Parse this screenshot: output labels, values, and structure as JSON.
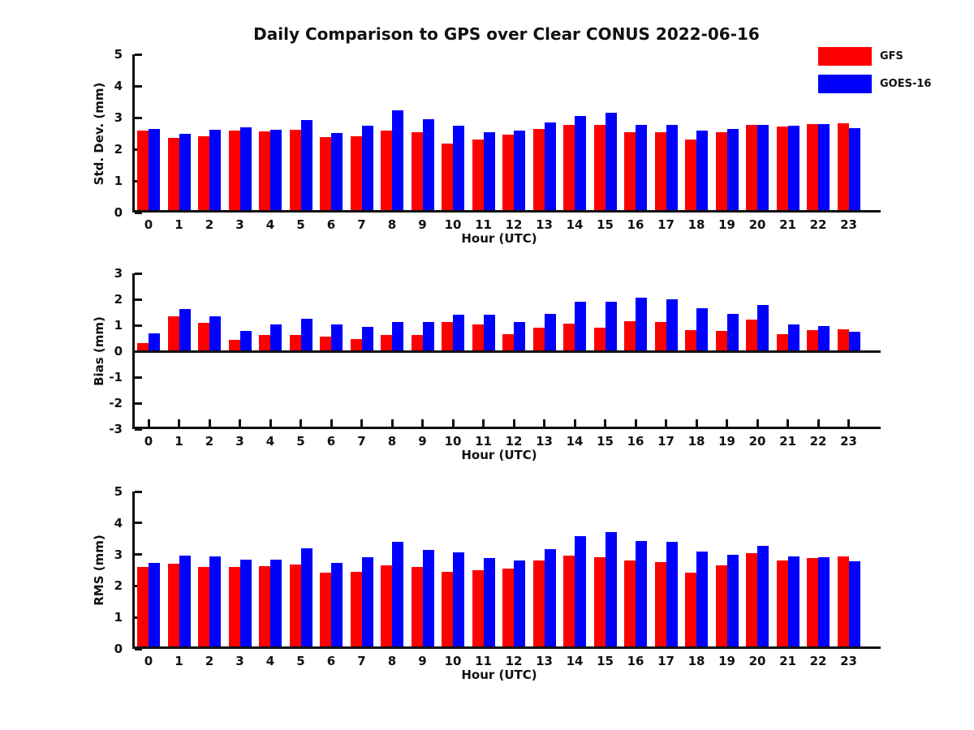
{
  "title": "Daily Comparison to GPS over Clear CONUS 2022-06-16",
  "colors": {
    "gfs": "#ff0000",
    "goes16": "#0000ff",
    "axis": "#111111"
  },
  "legend": [
    {
      "label": "GFS",
      "color": "#ff0000"
    },
    {
      "label": "GOES-16",
      "color": "#0000ff"
    }
  ],
  "chart_data": [
    {
      "type": "bar",
      "title": "",
      "ylabel": "Std. Dev. (mm)",
      "xlabel": "Hour (UTC)",
      "ylim": [
        0,
        5
      ],
      "yticks": [
        0,
        1,
        2,
        3,
        4,
        5
      ],
      "grid": false,
      "legend_position": "top-right-outside",
      "categories": [
        "0",
        "1",
        "2",
        "3",
        "4",
        "5",
        "6",
        "7",
        "8",
        "9",
        "10",
        "11",
        "12",
        "13",
        "14",
        "15",
        "16",
        "17",
        "18",
        "19",
        "20",
        "21",
        "22",
        "23"
      ],
      "series": [
        {
          "name": "GFS",
          "color": "#ff0000",
          "values": [
            2.6,
            2.37,
            2.4,
            2.6,
            2.57,
            2.62,
            2.38,
            2.42,
            2.6,
            2.54,
            2.17,
            2.3,
            2.45,
            2.65,
            2.77,
            2.78,
            2.53,
            2.53,
            2.3,
            2.53,
            2.77,
            2.72,
            2.79,
            2.83
          ]
        },
        {
          "name": "GOES-16",
          "color": "#0000ff",
          "values": [
            2.65,
            2.48,
            2.62,
            2.7,
            2.62,
            2.93,
            2.52,
            2.75,
            3.22,
            2.94,
            2.74,
            2.53,
            2.58,
            2.84,
            3.04,
            3.16,
            2.77,
            2.76,
            2.58,
            2.63,
            2.77,
            2.75,
            2.79,
            2.67
          ]
        }
      ]
    },
    {
      "type": "bar",
      "title": "",
      "ylabel": "Bias (mm)",
      "xlabel": "Hour (UTC)",
      "ylim": [
        -3,
        3
      ],
      "yticks": [
        -3,
        -2,
        -1,
        0,
        1,
        2,
        3
      ],
      "grid": false,
      "categories": [
        "0",
        "1",
        "2",
        "3",
        "4",
        "5",
        "6",
        "7",
        "8",
        "9",
        "10",
        "11",
        "12",
        "13",
        "14",
        "15",
        "16",
        "17",
        "18",
        "19",
        "20",
        "21",
        "22",
        "23"
      ],
      "series": [
        {
          "name": "GFS",
          "color": "#ff0000",
          "values": [
            0.3,
            1.35,
            1.1,
            0.45,
            0.64,
            0.64,
            0.55,
            0.48,
            0.64,
            0.63,
            1.12,
            1.03,
            0.67,
            0.9,
            1.06,
            0.91,
            1.17,
            1.13,
            0.82,
            0.78,
            1.23,
            0.65,
            0.82,
            0.83
          ]
        },
        {
          "name": "GOES-16",
          "color": "#0000ff",
          "values": [
            0.7,
            1.63,
            1.35,
            0.79,
            1.04,
            1.26,
            1.04,
            0.94,
            1.12,
            1.12,
            1.41,
            1.41,
            1.12,
            1.44,
            1.9,
            1.9,
            2.05,
            2.01,
            1.66,
            1.45,
            1.78,
            1.03,
            0.98,
            0.74
          ]
        }
      ]
    },
    {
      "type": "bar",
      "title": "",
      "ylabel": "RMS (mm)",
      "xlabel": "Hour (UTC)",
      "ylim": [
        0,
        5
      ],
      "yticks": [
        0,
        1,
        2,
        3,
        4,
        5
      ],
      "grid": false,
      "categories": [
        "0",
        "1",
        "2",
        "3",
        "4",
        "5",
        "6",
        "7",
        "8",
        "9",
        "10",
        "11",
        "12",
        "13",
        "14",
        "15",
        "16",
        "17",
        "18",
        "19",
        "20",
        "21",
        "22",
        "23"
      ],
      "series": [
        {
          "name": "GFS",
          "color": "#ff0000",
          "values": [
            2.6,
            2.7,
            2.6,
            2.6,
            2.63,
            2.68,
            2.41,
            2.45,
            2.65,
            2.6,
            2.45,
            2.51,
            2.54,
            2.8,
            2.96,
            2.9,
            2.81,
            2.75,
            2.43,
            2.65,
            3.04,
            2.81,
            2.89,
            2.93
          ]
        },
        {
          "name": "GOES-16",
          "color": "#0000ff",
          "values": [
            2.72,
            2.96,
            2.94,
            2.83,
            2.83,
            3.19,
            2.72,
            2.9,
            3.39,
            3.15,
            3.07,
            2.89,
            2.82,
            3.17,
            3.59,
            3.72,
            3.44,
            3.41,
            3.08,
            3.0,
            3.27,
            2.94,
            2.92,
            2.78
          ]
        }
      ]
    }
  ]
}
